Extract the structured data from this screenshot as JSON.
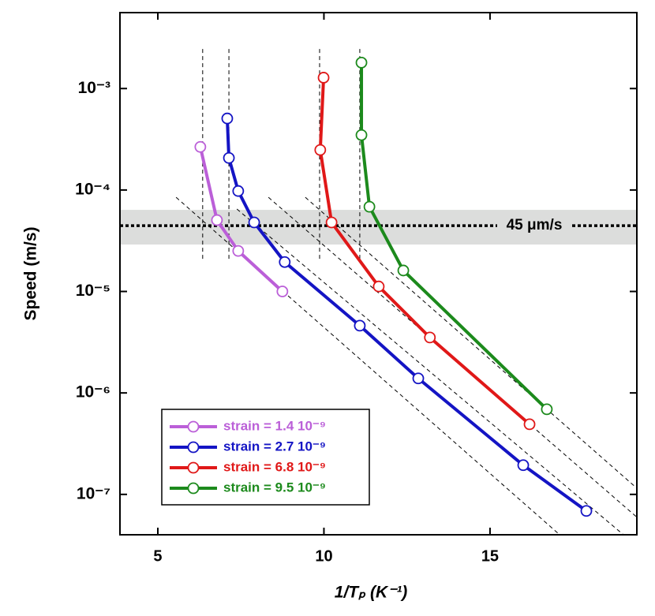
{
  "chart_data": {
    "type": "line",
    "x_label": "1/Tₚ (K⁻¹)",
    "y_label": "Speed (m/s)",
    "xlim": [
      3.86,
      19.42
    ],
    "ylim": [
      4e-08,
      0.0056
    ],
    "y_scale": "log",
    "xticks": [
      5,
      10,
      15
    ],
    "yticks": [
      {
        "value": 1e-07,
        "label": "10⁻⁷"
      },
      {
        "value": 1e-06,
        "label": "10⁻⁶"
      },
      {
        "value": 1e-05,
        "label": "10⁻⁵"
      },
      {
        "value": 0.0001,
        "label": "10⁻⁴"
      },
      {
        "value": 0.001,
        "label": "10⁻³"
      }
    ],
    "legend": "bottom-left",
    "series": [
      {
        "name": "strain = 1.4 10⁻⁹",
        "color": "#bb5fd8",
        "x": [
          6.28,
          6.78,
          7.42,
          8.75
        ],
        "values": [
          0.000266,
          5.05e-05,
          2.51e-05,
          1e-05
        ]
      },
      {
        "name": "strain = 2.7 10⁻⁹",
        "color": "#1414c4",
        "x": [
          7.09,
          7.14,
          7.42,
          7.9,
          8.82,
          11.08,
          12.84,
          16.0,
          17.9
        ],
        "values": [
          0.000507,
          0.000207,
          9.77e-05,
          4.79e-05,
          1.95e-05,
          4.6e-06,
          1.39e-06,
          1.94e-07,
          6.87e-08
        ]
      },
      {
        "name": "strain = 6.8 10⁻⁹",
        "color": "#e01818",
        "x": [
          9.99,
          9.89,
          10.23,
          11.65,
          13.19,
          16.19
        ],
        "values": [
          0.00128,
          0.000248,
          4.79e-05,
          1.12e-05,
          3.52e-06,
          4.91e-07
        ]
      },
      {
        "name": "strain = 9.5 10⁻⁹",
        "color": "#1c8a1c",
        "x": [
          11.13,
          11.13,
          11.37,
          12.39,
          16.71
        ],
        "values": [
          0.0018,
          0.000348,
          6.84e-05,
          1.61e-05,
          6.9e-07
        ]
      }
    ],
    "band": {
      "values": [
        2.9e-05,
        6.37e-05
      ]
    },
    "threshold": {
      "value": 4.45e-05,
      "label": "45 μm/s"
    },
    "reference_lines": [
      {
        "x": [
          6.35,
          6.35
        ],
        "values": [
          0.00245,
          2.04e-05
        ]
      },
      {
        "x": [
          7.14,
          7.14
        ],
        "values": [
          0.00245,
          2.04e-05
        ]
      },
      {
        "x": [
          9.87,
          9.87
        ],
        "values": [
          0.00245,
          2.04e-05
        ]
      },
      {
        "x": [
          11.08,
          11.08
        ],
        "values": [
          0.00245,
          2.04e-05
        ]
      },
      {
        "x": [
          5.55,
          17.09
        ],
        "values": [
          8.47e-05,
          4.02e-08
        ]
      },
      {
        "x": [
          7.38,
          19.01
        ],
        "values": [
          6.49e-05,
          4.02e-08
        ]
      },
      {
        "x": [
          8.33,
          19.42
        ],
        "values": [
          8.47e-05,
          5.96e-08
        ]
      },
      {
        "x": [
          9.44,
          19.42
        ],
        "values": [
          8.47e-05,
          1.15e-07
        ]
      }
    ]
  }
}
